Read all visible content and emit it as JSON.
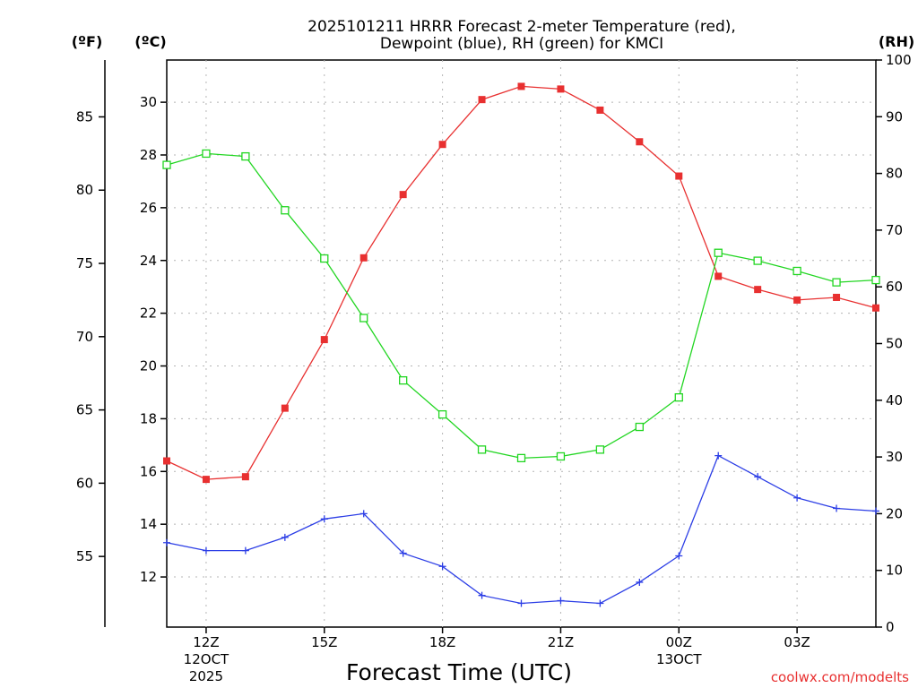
{
  "chart_data": {
    "type": "line",
    "title_line1": "2025101211 HRRR Forecast 2-meter Temperature (red),",
    "title_line2": "Dewpoint (blue), RH (green) for KMCI",
    "xlabel": "Forecast Time (UTC)",
    "credit": "coolwx.com/modelts",
    "units": {
      "fahrenheit": "(ºF)",
      "celsius": "(ºC)",
      "rh": "(RH)"
    },
    "x_range": [
      11,
      29
    ],
    "x_ticks": [
      {
        "x": 12,
        "label": "12Z",
        "sub1": "12OCT",
        "sub2": "2025"
      },
      {
        "x": 15,
        "label": "15Z",
        "sub1": "",
        "sub2": ""
      },
      {
        "x": 18,
        "label": "18Z",
        "sub1": "",
        "sub2": ""
      },
      {
        "x": 21,
        "label": "21Z",
        "sub1": "",
        "sub2": ""
      },
      {
        "x": 24,
        "label": "00Z",
        "sub1": "13OCT",
        "sub2": ""
      },
      {
        "x": 27,
        "label": "03Z",
        "sub1": "",
        "sub2": ""
      }
    ],
    "celsius_range": [
      10.1,
      31.6
    ],
    "celsius_ticks": [
      12,
      14,
      16,
      18,
      20,
      22,
      24,
      26,
      28,
      30
    ],
    "fahrenheit_ticks": [
      55,
      60,
      65,
      70,
      75,
      80,
      85
    ],
    "rh_range": [
      0,
      100
    ],
    "rh_ticks": [
      0,
      10,
      20,
      30,
      40,
      50,
      60,
      70,
      80,
      90,
      100
    ],
    "hours": [
      11,
      12,
      13,
      14,
      15,
      16,
      17,
      18,
      19,
      20,
      21,
      22,
      23,
      24,
      25,
      26,
      27,
      28,
      29
    ],
    "series": [
      {
        "name": "Temperature",
        "unit": "C",
        "color": "#e83030",
        "marker": "filled-square",
        "values": [
          16.4,
          15.7,
          15.8,
          18.4,
          21.0,
          24.1,
          26.5,
          28.4,
          30.1,
          30.6,
          30.5,
          29.7,
          28.5,
          27.2,
          23.4,
          22.9,
          22.5,
          22.6,
          22.2
        ]
      },
      {
        "name": "Dewpoint",
        "unit": "C",
        "color": "#2c3ee6",
        "marker": "plus",
        "values": [
          13.3,
          13.0,
          13.0,
          13.5,
          14.2,
          14.4,
          12.9,
          12.4,
          11.3,
          11.0,
          11.1,
          11.0,
          11.8,
          12.8,
          16.6,
          15.8,
          15.0,
          14.6,
          14.5
        ]
      },
      {
        "name": "RH",
        "unit": "%",
        "color": "#22d622",
        "marker": "open-square",
        "values": [
          81.5,
          83.5,
          83.0,
          73.5,
          65.0,
          54.5,
          43.5,
          37.5,
          31.3,
          29.8,
          30.1,
          31.3,
          35.3,
          40.5,
          66.0,
          64.6,
          62.8,
          60.8,
          61.2
        ]
      }
    ]
  }
}
